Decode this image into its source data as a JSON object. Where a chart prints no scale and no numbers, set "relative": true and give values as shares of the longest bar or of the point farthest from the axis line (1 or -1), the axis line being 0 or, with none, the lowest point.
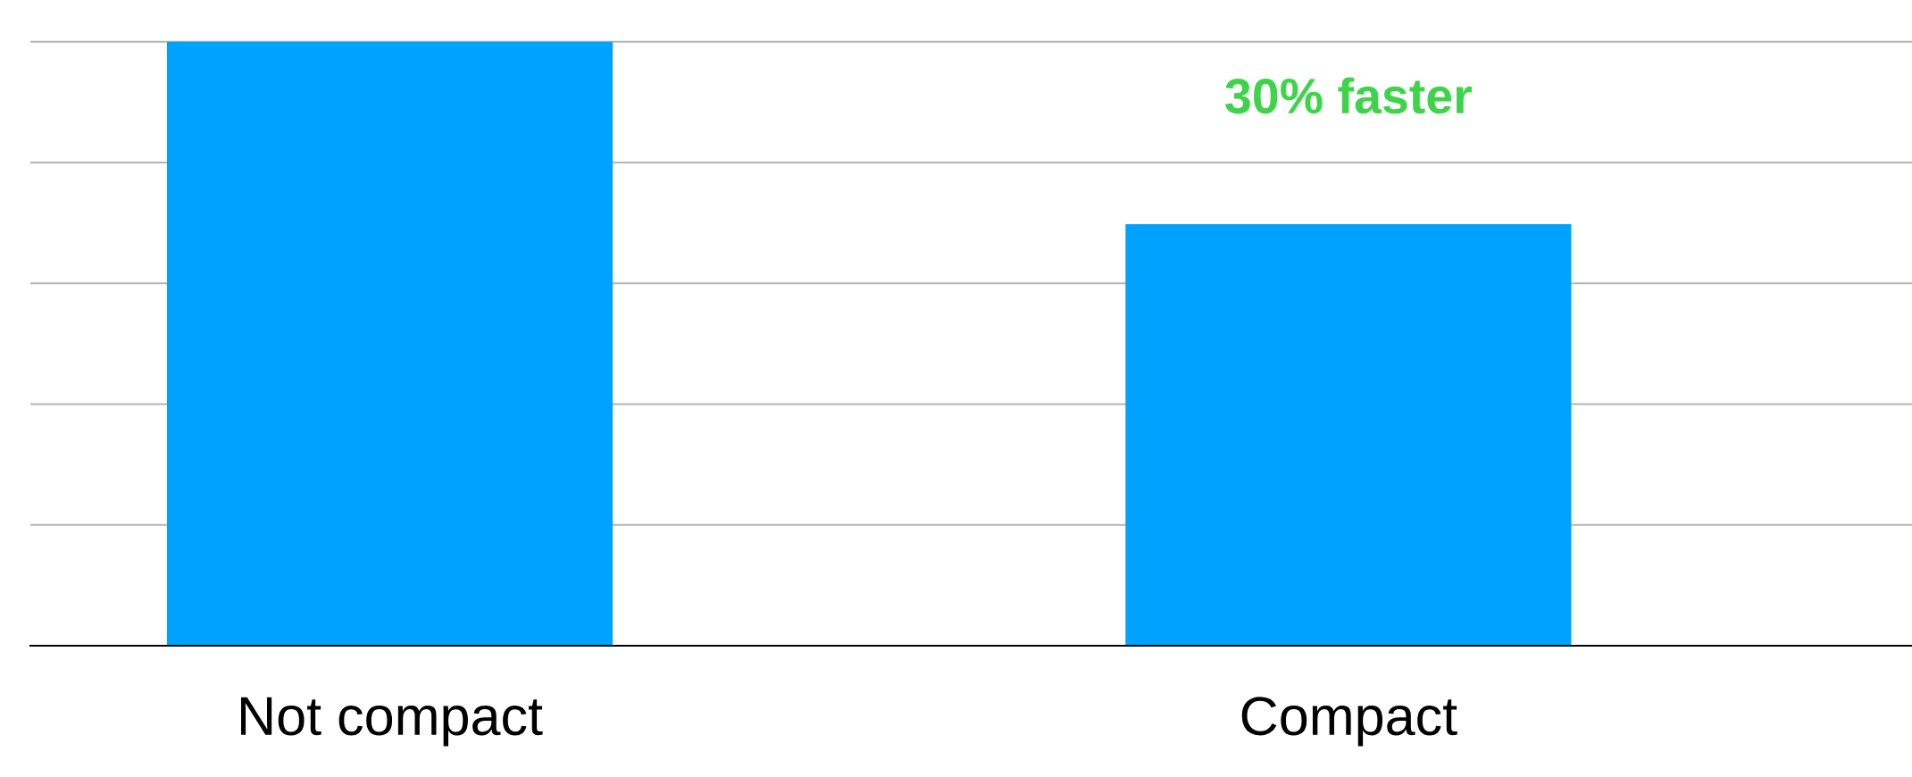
{
  "chart_data": {
    "type": "bar",
    "relative": true,
    "categories": [
      "Not compact",
      "Compact"
    ],
    "values": [
      1,
      0.698
    ],
    "color": "#00a2ff",
    "grid": "y",
    "annotations": [
      "30% faster"
    ]
  }
}
